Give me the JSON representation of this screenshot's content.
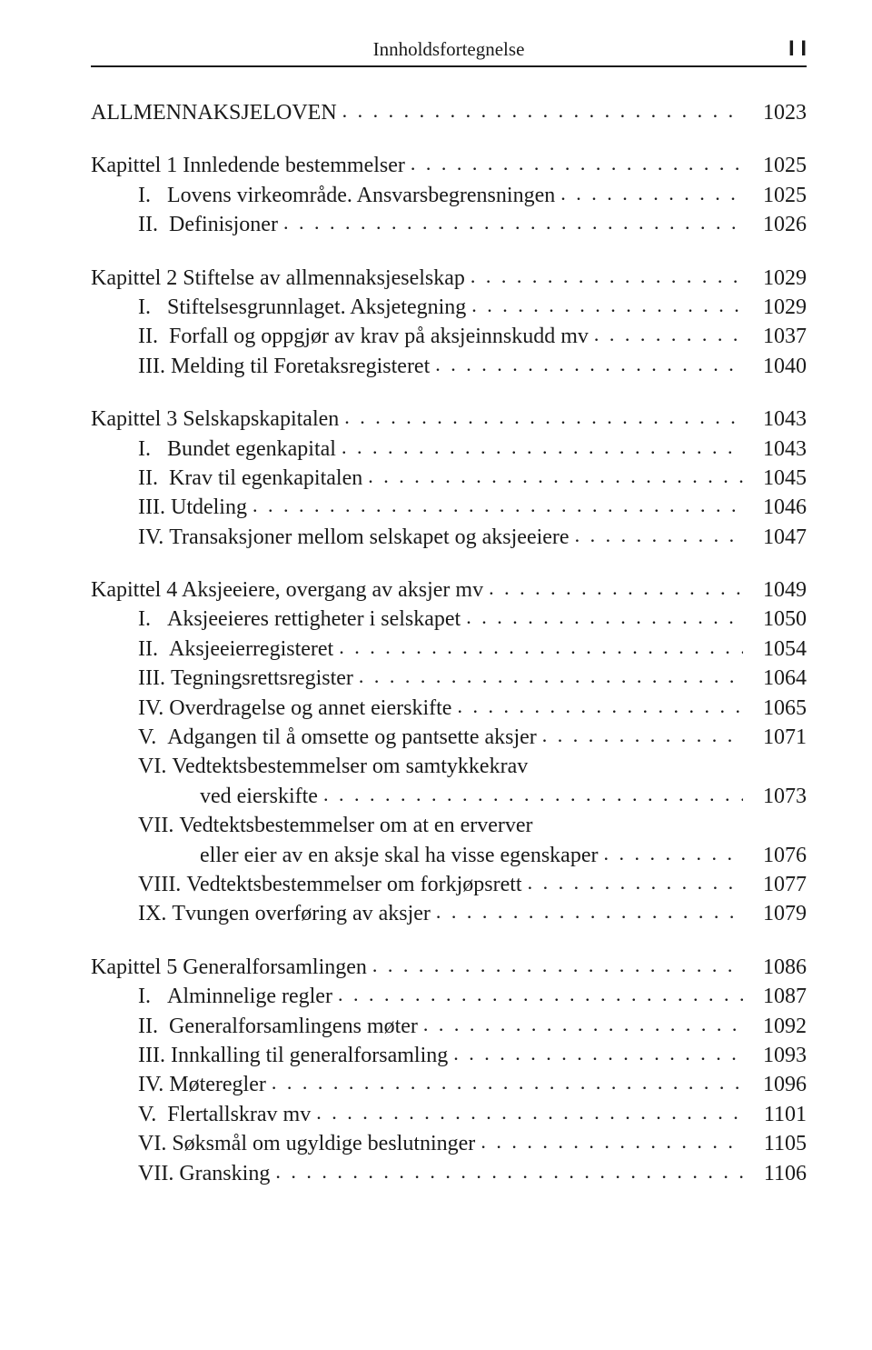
{
  "header": {
    "title": "Innholdsfortegnelse",
    "pagenum": "I I"
  },
  "leader_dots": ". . . . . . . . . . . . . . . . . . . . . . . . . . . . . . . . . . . . . . . . . . . . . . . . . . . . . . . . . . . .",
  "items": [
    {
      "indent": 0,
      "label": "",
      "text": "ALLMENNAKSJELOVEN",
      "page": "1023",
      "gap_after": true
    },
    {
      "indent": 0,
      "label": "",
      "text": "Kapittel 1 Innledende bestemmelser",
      "page": "1025"
    },
    {
      "indent": 1,
      "label": "I.   ",
      "text": "Lovens virkeområde. Ansvarsbegrensningen",
      "page": "1025"
    },
    {
      "indent": 1,
      "label": "II.  ",
      "text": "Definisjoner",
      "page": "1026",
      "gap_after": true
    },
    {
      "indent": 0,
      "label": "",
      "text": "Kapittel 2 Stiftelse av allmennaksjeselskap",
      "page": "1029"
    },
    {
      "indent": 1,
      "label": "I.   ",
      "text": "Stiftelsesgrunnlaget. Aksjetegning",
      "page": "1029"
    },
    {
      "indent": 1,
      "label": "II.  ",
      "text": "Forfall og oppgjør av krav på aksjeinnskudd mv",
      "page": "1037"
    },
    {
      "indent": 1,
      "label": "III. ",
      "text": "Melding til Foretaksregisteret",
      "page": "1040",
      "gap_after": true
    },
    {
      "indent": 0,
      "label": "",
      "text": "Kapittel 3 Selskapskapitalen",
      "page": "1043"
    },
    {
      "indent": 1,
      "label": "I.   ",
      "text": "Bundet egenkapital",
      "page": "1043"
    },
    {
      "indent": 1,
      "label": "II.  ",
      "text": "Krav til egenkapitalen",
      "page": "1045"
    },
    {
      "indent": 1,
      "label": "III. ",
      "text": "Utdeling",
      "page": "1046"
    },
    {
      "indent": 1,
      "label": "IV. ",
      "text": "Transaksjoner mellom selskapet og aksjeeiere",
      "page": "1047",
      "gap_after": true
    },
    {
      "indent": 0,
      "label": "",
      "text": "Kapittel 4 Aksjeeiere, overgang av aksjer mv",
      "page": "1049"
    },
    {
      "indent": 1,
      "label": "I.   ",
      "text": "Aksjeeieres rettigheter i selskapet",
      "page": "1050"
    },
    {
      "indent": 1,
      "label": "II.  ",
      "text": "Aksjeeierregisteret",
      "page": "1054"
    },
    {
      "indent": 1,
      "label": "III. ",
      "text": "Tegningsrettsregister",
      "page": "1064"
    },
    {
      "indent": 1,
      "label": "IV. ",
      "text": "Overdragelse og annet eierskifte",
      "page": "1065"
    },
    {
      "indent": 1,
      "label": "V.  ",
      "text": "Adgangen til å omsette og pantsette aksjer",
      "page": "1071"
    },
    {
      "indent": 1,
      "label": "VI. ",
      "text": "Vedtektsbestemmelser om samtykkekrav",
      "page": "",
      "no_leader": true
    },
    {
      "indent": 2,
      "label": "",
      "text": "ved eierskifte",
      "page": "1073"
    },
    {
      "indent": 1,
      "label": "VII. ",
      "text": "Vedtektsbestemmelser om at en erverver",
      "page": "",
      "no_leader": true
    },
    {
      "indent": 2,
      "label": "",
      "text": "eller eier av en aksje skal ha visse egenskaper",
      "page": "1076"
    },
    {
      "indent": 1,
      "label": "VIII. ",
      "text": "Vedtektsbestemmelser om forkjøpsrett",
      "page": "1077"
    },
    {
      "indent": 1,
      "label": "IX. ",
      "text": "Tvungen overføring av aksjer",
      "page": "1079",
      "gap_after": true
    },
    {
      "indent": 0,
      "label": "",
      "text": "Kapittel 5 Generalforsamlingen",
      "page": "1086"
    },
    {
      "indent": 1,
      "label": "I.   ",
      "text": "Alminnelige regler",
      "page": "1087"
    },
    {
      "indent": 1,
      "label": "II.  ",
      "text": "Generalforsamlingens møter",
      "page": "1092"
    },
    {
      "indent": 1,
      "label": "III. ",
      "text": "Innkalling til generalforsamling",
      "page": "1093"
    },
    {
      "indent": 1,
      "label": "IV. ",
      "text": "Møteregler",
      "page": "1096"
    },
    {
      "indent": 1,
      "label": "V.  ",
      "text": "Flertallskrav mv",
      "page": "1101"
    },
    {
      "indent": 1,
      "label": "VI. ",
      "text": "Søksmål om ugyldige beslutninger",
      "page": "1105"
    },
    {
      "indent": 1,
      "label": "VII. ",
      "text": "Gransking",
      "page": "1106"
    }
  ]
}
